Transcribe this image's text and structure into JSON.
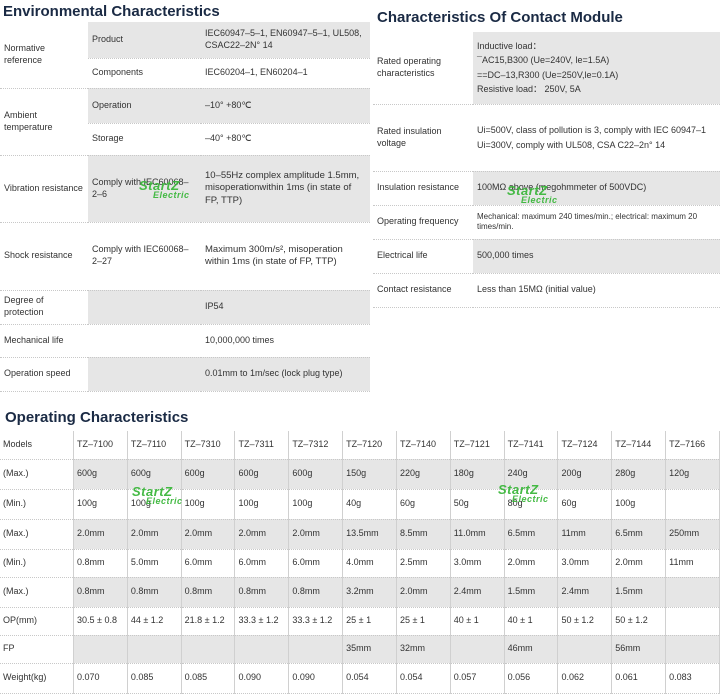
{
  "environmental": {
    "title": "Environmental Characteristics",
    "rows": [
      {
        "label": "Normative reference",
        "sub": "Product",
        "value": "IEC60947–5–1, EN60947–5–1, UL508, CSAC22–2N° 14"
      },
      {
        "label": "",
        "sub": "Components",
        "value": "IEC60204–1, EN60204–1"
      },
      {
        "label": "Ambient temperature",
        "sub": "Operation",
        "value": "–10° +80℃"
      },
      {
        "label": "",
        "sub": "Storage",
        "value": "–40° +80℃"
      },
      {
        "label": "Vibration resistance",
        "sub": "Comply with IEC60068–2–6",
        "value": "10–55Hz complex amplitude 1.5mm, misoperationwithin 1ms (in state of FP, TTP)"
      },
      {
        "label": "Shock resistance",
        "sub": "Comply with IEC60068–2–27",
        "value": "Maximum 300m/s², misoperation within 1ms (in state of FP, TTP)"
      },
      {
        "label": "Degree of protection",
        "sub": "",
        "value": "IP54"
      },
      {
        "label": "Mechanical life",
        "sub": "",
        "value": "10,000,000 times"
      },
      {
        "label": "Operation speed",
        "sub": "",
        "value": "0.01mm to 1m/sec (lock plug type)"
      }
    ]
  },
  "contact": {
    "title": "Characteristics Of Contact Module",
    "rated_operating": {
      "label": "Rated operating characteristics",
      "lines": [
        "Inductive load：",
        "¯AC15,B300 (Ue=240V, le=1.5A)",
        "==DC–13,R300 (Ue=250V,le=0.1A)",
        "Resistive load：  250V, 5A"
      ]
    },
    "rated_insulation": {
      "label": "Rated insulation voltage",
      "lines": [
        "Ui=500V, class of pollution is 3, comply with IEC 60947–1",
        "Ui=300V, comply with UL508, CSA C22–2n° 14"
      ]
    },
    "insulation_resistance": {
      "label": "Insulation resistance",
      "value": "100MΩ above (megohmmeter of 500VDC)"
    },
    "operating_frequency": {
      "label": "Operating frequency",
      "value": "Mechanical: maximum 240 times/min.; electrical: maximum 20 times/min."
    },
    "electrical_life": {
      "label": "Electrical life",
      "value": "500,000 times"
    },
    "contact_resistance": {
      "label": "Contact resistance",
      "value": "Less than 15MΩ (initial value)"
    }
  },
  "operating": {
    "title": "Operating Characteristics",
    "header": [
      "Models",
      "TZ–7100",
      "TZ–7110",
      "TZ–7310",
      "TZ–7311",
      "TZ–7312",
      "TZ–7120",
      "TZ–7140",
      "TZ–7121",
      "TZ–7141",
      "TZ–7124",
      "TZ–7144",
      "TZ–7166"
    ],
    "rows": [
      [
        "(Max.)",
        "600g",
        "600g",
        "600g",
        "600g",
        "600g",
        "150g",
        "220g",
        "180g",
        "240g",
        "200g",
        "280g",
        "120g"
      ],
      [
        "(Min.)",
        "100g",
        "100g",
        "100g",
        "100g",
        "100g",
        "40g",
        "60g",
        "50g",
        "80g",
        "60g",
        "100g",
        ""
      ],
      [
        "(Max.)",
        "2.0mm",
        "2.0mm",
        "2.0mm",
        "2.0mm",
        "2.0mm",
        "13.5mm",
        "8.5mm",
        "11.0mm",
        "6.5mm",
        "11mm",
        "6.5mm",
        "250mm"
      ],
      [
        "(Min.)",
        "0.8mm",
        "5.0mm",
        "6.0mm",
        "6.0mm",
        "6.0mm",
        "4.0mm",
        "2.5mm",
        "3.0mm",
        "2.0mm",
        "3.0mm",
        "2.0mm",
        "11mm"
      ],
      [
        "(Max.)",
        "0.8mm",
        "0.8mm",
        "0.8mm",
        "0.8mm",
        "0.8mm",
        "3.2mm",
        "2.0mm",
        "2.4mm",
        "1.5mm",
        "2.4mm",
        "1.5mm",
        ""
      ],
      [
        "OP(mm)",
        "30.5 ± 0.8",
        "44 ± 1.2",
        "21.8 ± 1.2",
        "33.3 ± 1.2",
        "33.3 ± 1.2",
        "25 ± 1",
        "25 ± 1",
        "40 ± 1",
        "40 ± 1",
        "50 ± 1.2",
        "50 ± 1.2",
        ""
      ],
      [
        "FP",
        "",
        "",
        "",
        "",
        "",
        "35mm",
        "32mm",
        "",
        "46mm",
        "",
        "56mm",
        ""
      ],
      [
        "Weight(kg)",
        "0.070",
        "0.085",
        "0.085",
        "0.090",
        "0.090",
        "0.054",
        "0.054",
        "0.057",
        "0.056",
        "0.062",
        "0.061",
        "0.083"
      ]
    ]
  },
  "watermark": {
    "brand": "StartZ",
    "sub": "Electric"
  }
}
